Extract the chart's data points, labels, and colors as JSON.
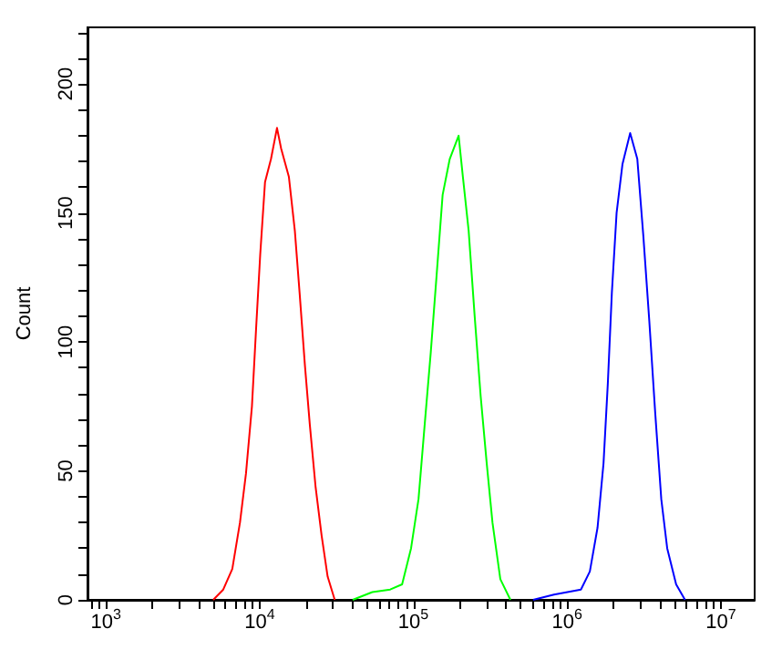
{
  "chart_data": {
    "type": "line",
    "ylabel": "Count",
    "log": "x",
    "grid": false,
    "marker": "none",
    "line_style": "solid",
    "xlim": [
      759,
      16600000
    ],
    "ylim": [
      0,
      222
    ],
    "xticks": [
      {
        "value": 800,
        "label": null
      },
      {
        "value": 900,
        "label": null
      },
      {
        "value": 1000,
        "label": "10$^{3}$"
      },
      {
        "value": 2000,
        "label": null
      },
      {
        "value": 3000,
        "label": null
      },
      {
        "value": 4000,
        "label": null
      },
      {
        "value": 5000,
        "label": null
      },
      {
        "value": 6000,
        "label": null
      },
      {
        "value": 7000,
        "label": null
      },
      {
        "value": 8000,
        "label": null
      },
      {
        "value": 9000,
        "label": null
      },
      {
        "value": 10000,
        "label": "10$^{4}$"
      },
      {
        "value": 20000,
        "label": null
      },
      {
        "value": 30000,
        "label": null
      },
      {
        "value": 40000,
        "label": null
      },
      {
        "value": 50000,
        "label": null
      },
      {
        "value": 60000,
        "label": null
      },
      {
        "value": 70000,
        "label": null
      },
      {
        "value": 80000,
        "label": null
      },
      {
        "value": 90000,
        "label": null
      },
      {
        "value": 100000,
        "label": "10$^{5}$"
      },
      {
        "value": 200000,
        "label": null
      },
      {
        "value": 300000,
        "label": null
      },
      {
        "value": 400000,
        "label": null
      },
      {
        "value": 500000,
        "label": null
      },
      {
        "value": 600000,
        "label": null
      },
      {
        "value": 700000,
        "label": null
      },
      {
        "value": 800000,
        "label": null
      },
      {
        "value": 900000,
        "label": null
      },
      {
        "value": 1000000,
        "label": "10$^{6}$"
      },
      {
        "value": 2000000,
        "label": null
      },
      {
        "value": 3000000,
        "label": null
      },
      {
        "value": 4000000,
        "label": null
      },
      {
        "value": 5000000,
        "label": null
      },
      {
        "value": 6000000,
        "label": null
      },
      {
        "value": 7000000,
        "label": null
      },
      {
        "value": 8000000,
        "label": null
      },
      {
        "value": 9000000,
        "label": null
      },
      {
        "value": 10000000,
        "label": "10$^{7}$"
      }
    ],
    "yticks": [
      0,
      {
        "value": 10,
        "label": null
      },
      {
        "value": 20,
        "label": null
      },
      {
        "value": 30,
        "label": null
      },
      {
        "value": 40,
        "label": null
      },
      50,
      {
        "value": 60,
        "label": null
      },
      {
        "value": 70,
        "label": null
      },
      {
        "value": 80,
        "label": null
      },
      {
        "value": 90,
        "label": null
      },
      100,
      {
        "value": 110,
        "label": null
      },
      {
        "value": 120,
        "label": null
      },
      {
        "value": 130,
        "label": null
      },
      {
        "value": 140,
        "label": null
      },
      150,
      {
        "value": 160,
        "label": null
      },
      {
        "value": 170,
        "label": null
      },
      {
        "value": 180,
        "label": null
      },
      {
        "value": 190,
        "label": null
      },
      200,
      {
        "value": 210,
        "label": null
      },
      {
        "value": 220,
        "label": null
      }
    ],
    "series": [
      {
        "color": "#ff0000",
        "x": [
          4990,
          5800,
          6640,
          7450,
          8150,
          8910,
          9480,
          10090,
          10840,
          11860,
          12970,
          13800,
          15500,
          16950,
          18200,
          19700,
          21200,
          23100,
          25300,
          27700,
          30800
        ],
        "values": [
          0,
          4,
          12,
          30,
          49,
          75,
          105,
          134,
          162,
          171,
          183,
          175,
          164,
          143,
          119,
          91,
          68,
          44,
          25,
          9,
          0
        ]
      },
      {
        "color": "#00ff00",
        "x": [
          40300,
          54100,
          70700,
          84500,
          96600,
          108000,
          118500,
          129800,
          141700,
          155000,
          172500,
          197000,
          210000,
          229000,
          250500,
          274000,
          300000,
          327000,
          368000,
          428000
        ],
        "values": [
          0,
          3,
          4,
          6,
          20,
          39,
          68,
          96,
          126,
          157,
          171,
          180,
          164,
          143,
          110,
          79,
          53,
          30,
          8,
          0
        ]
      },
      {
        "color": "#0000ff",
        "x": [
          601000,
          822000,
          1230000,
          1406000,
          1578000,
          1726000,
          1841000,
          1955000,
          2099000,
          2293000,
          2572000,
          2862000,
          3134000,
          3427000,
          3748000,
          4100000,
          4479000,
          5120000,
          5848000
        ],
        "values": [
          0,
          2,
          4,
          11,
          28,
          53,
          84,
          119,
          150,
          169,
          181,
          171,
          141,
          108,
          72,
          39,
          20,
          6,
          0
        ]
      }
    ]
  }
}
